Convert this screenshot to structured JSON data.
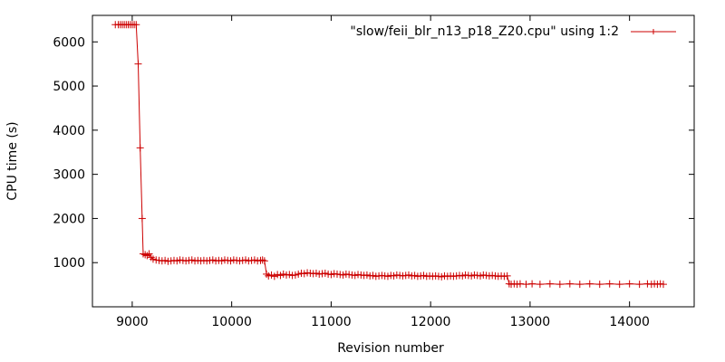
{
  "chart_data": {
    "type": "line",
    "title": "",
    "xlabel": "Revision number",
    "ylabel": "CPU time (s)",
    "xlim": [
      8600,
      14650
    ],
    "ylim": [
      0,
      6600
    ],
    "xticks": [
      9000,
      10000,
      11000,
      12000,
      13000,
      14000
    ],
    "yticks": [
      1000,
      2000,
      3000,
      4000,
      5000,
      6000
    ],
    "grid": false,
    "legend_position": "top-right",
    "color": "#cc0000",
    "series": [
      {
        "name": "\"slow/feii_blr_n13_p18_Z20.cpu\" using 1:2",
        "points": [
          [
            8830,
            6390
          ],
          [
            8860,
            6390
          ],
          [
            8880,
            6390
          ],
          [
            8900,
            6390
          ],
          [
            8920,
            6390
          ],
          [
            8940,
            6390
          ],
          [
            8960,
            6390
          ],
          [
            8980,
            6390
          ],
          [
            9000,
            6390
          ],
          [
            9020,
            6390
          ],
          [
            9040,
            6390
          ],
          [
            9060,
            5500
          ],
          [
            9080,
            3600
          ],
          [
            9100,
            2000
          ],
          [
            9110,
            1200
          ],
          [
            9130,
            1180
          ],
          [
            9150,
            1160
          ],
          [
            9170,
            1200
          ],
          [
            9190,
            1120
          ],
          [
            9210,
            1080
          ],
          [
            9240,
            1060
          ],
          [
            9270,
            1050
          ],
          [
            9300,
            1040
          ],
          [
            9330,
            1050
          ],
          [
            9360,
            1030
          ],
          [
            9390,
            1040
          ],
          [
            9420,
            1050
          ],
          [
            9450,
            1040
          ],
          [
            9480,
            1060
          ],
          [
            9510,
            1050
          ],
          [
            9540,
            1040
          ],
          [
            9570,
            1050
          ],
          [
            9600,
            1060
          ],
          [
            9630,
            1040
          ],
          [
            9660,
            1050
          ],
          [
            9690,
            1040
          ],
          [
            9720,
            1050
          ],
          [
            9750,
            1040
          ],
          [
            9780,
            1050
          ],
          [
            9810,
            1060
          ],
          [
            9840,
            1040
          ],
          [
            9870,
            1050
          ],
          [
            9900,
            1040
          ],
          [
            9930,
            1060
          ],
          [
            9960,
            1050
          ],
          [
            9990,
            1040
          ],
          [
            10020,
            1060
          ],
          [
            10050,
            1050
          ],
          [
            10080,
            1040
          ],
          [
            10110,
            1050
          ],
          [
            10140,
            1060
          ],
          [
            10170,
            1040
          ],
          [
            10200,
            1050
          ],
          [
            10230,
            1060
          ],
          [
            10260,
            1040
          ],
          [
            10290,
            1050
          ],
          [
            10310,
            1060
          ],
          [
            10330,
            1040
          ],
          [
            10350,
            740
          ],
          [
            10370,
            700
          ],
          [
            10400,
            720
          ],
          [
            10430,
            690
          ],
          [
            10460,
            730
          ],
          [
            10490,
            710
          ],
          [
            10520,
            740
          ],
          [
            10550,
            720
          ],
          [
            10580,
            730
          ],
          [
            10610,
            710
          ],
          [
            10640,
            720
          ],
          [
            10670,
            740
          ],
          [
            10700,
            760
          ],
          [
            10730,
            750
          ],
          [
            10760,
            770
          ],
          [
            10790,
            760
          ],
          [
            10820,
            750
          ],
          [
            10850,
            760
          ],
          [
            10880,
            740
          ],
          [
            10910,
            750
          ],
          [
            10940,
            760
          ],
          [
            10970,
            740
          ],
          [
            11000,
            730
          ],
          [
            11030,
            750
          ],
          [
            11060,
            740
          ],
          [
            11090,
            730
          ],
          [
            11120,
            720
          ],
          [
            11150,
            740
          ],
          [
            11180,
            730
          ],
          [
            11210,
            720
          ],
          [
            11240,
            710
          ],
          [
            11270,
            730
          ],
          [
            11300,
            720
          ],
          [
            11330,
            710
          ],
          [
            11360,
            720
          ],
          [
            11390,
            700
          ],
          [
            11420,
            710
          ],
          [
            11450,
            690
          ],
          [
            11480,
            700
          ],
          [
            11510,
            710
          ],
          [
            11540,
            700
          ],
          [
            11570,
            690
          ],
          [
            11600,
            710
          ],
          [
            11630,
            700
          ],
          [
            11660,
            720
          ],
          [
            11690,
            710
          ],
          [
            11720,
            700
          ],
          [
            11750,
            710
          ],
          [
            11780,
            720
          ],
          [
            11810,
            700
          ],
          [
            11840,
            710
          ],
          [
            11870,
            690
          ],
          [
            11900,
            700
          ],
          [
            11930,
            710
          ],
          [
            11960,
            690
          ],
          [
            11990,
            700
          ],
          [
            12020,
            690
          ],
          [
            12050,
            700
          ],
          [
            12080,
            690
          ],
          [
            12110,
            680
          ],
          [
            12140,
            700
          ],
          [
            12170,
            690
          ],
          [
            12200,
            700
          ],
          [
            12230,
            690
          ],
          [
            12260,
            700
          ],
          [
            12290,
            710
          ],
          [
            12320,
            700
          ],
          [
            12350,
            720
          ],
          [
            12380,
            710
          ],
          [
            12410,
            700
          ],
          [
            12440,
            720
          ],
          [
            12470,
            710
          ],
          [
            12500,
            700
          ],
          [
            12530,
            720
          ],
          [
            12560,
            710
          ],
          [
            12590,
            700
          ],
          [
            12620,
            710
          ],
          [
            12650,
            700
          ],
          [
            12680,
            690
          ],
          [
            12710,
            700
          ],
          [
            12740,
            690
          ],
          [
            12770,
            700
          ],
          [
            12790,
            520
          ],
          [
            12810,
            510
          ],
          [
            12840,
            520
          ],
          [
            12870,
            510
          ],
          [
            12900,
            520
          ],
          [
            12960,
            510
          ],
          [
            13020,
            520
          ],
          [
            13100,
            510
          ],
          [
            13200,
            520
          ],
          [
            13300,
            510
          ],
          [
            13400,
            520
          ],
          [
            13500,
            510
          ],
          [
            13600,
            520
          ],
          [
            13700,
            510
          ],
          [
            13800,
            520
          ],
          [
            13900,
            510
          ],
          [
            14000,
            520
          ],
          [
            14100,
            510
          ],
          [
            14180,
            520
          ],
          [
            14220,
            510
          ],
          [
            14250,
            520
          ],
          [
            14280,
            510
          ],
          [
            14310,
            520
          ],
          [
            14340,
            510
          ]
        ]
      }
    ]
  }
}
